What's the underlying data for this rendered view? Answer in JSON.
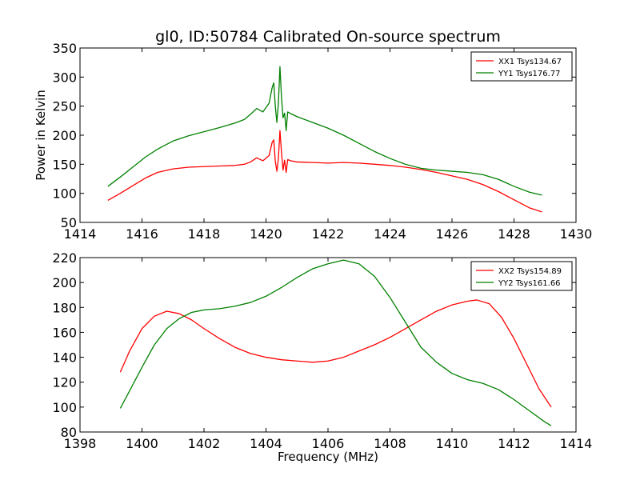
{
  "chart_data": [
    {
      "type": "line",
      "title": "gl0, ID:50784 Calibrated On-source spectrum",
      "xlabel": "",
      "ylabel": "Power in Kelvin",
      "xlim": [
        1414,
        1430
      ],
      "ylim": [
        50,
        350
      ],
      "xticks": [
        1414,
        1416,
        1418,
        1420,
        1422,
        1424,
        1426,
        1428,
        1430
      ],
      "yticks": [
        50,
        100,
        150,
        200,
        250,
        300,
        350
      ],
      "legend_position": "top-right",
      "series": [
        {
          "name": "XX1 Tsys134.67",
          "color": "#ff0000",
          "x": [
            1414.9,
            1415.3,
            1415.7,
            1416.1,
            1416.5,
            1417.0,
            1417.5,
            1418.0,
            1418.5,
            1419.0,
            1419.3,
            1419.5,
            1419.7,
            1419.9,
            1420.1,
            1420.2,
            1420.25,
            1420.3,
            1420.35,
            1420.4,
            1420.45,
            1420.5,
            1420.55,
            1420.6,
            1420.65,
            1420.7,
            1420.8,
            1421.0,
            1421.5,
            1422.0,
            1422.5,
            1423.0,
            1423.5,
            1424.0,
            1424.5,
            1425.0,
            1425.5,
            1426.0,
            1426.5,
            1427.0,
            1427.5,
            1428.0,
            1428.5,
            1428.9
          ],
          "y": [
            88,
            100,
            113,
            126,
            136,
            142,
            145,
            146,
            147,
            148,
            150,
            154,
            161,
            156,
            165,
            188,
            192,
            155,
            138,
            160,
            208,
            170,
            140,
            157,
            136,
            158,
            156,
            154,
            153,
            152,
            153,
            152,
            150,
            148,
            145,
            141,
            136,
            130,
            124,
            115,
            103,
            89,
            75,
            68
          ]
        },
        {
          "name": "YY1 Tsys176.77",
          "color": "#008000",
          "x": [
            1414.9,
            1415.3,
            1415.7,
            1416.1,
            1416.5,
            1417.0,
            1417.5,
            1418.0,
            1418.5,
            1419.0,
            1419.3,
            1419.5,
            1419.7,
            1419.9,
            1420.1,
            1420.2,
            1420.25,
            1420.3,
            1420.35,
            1420.4,
            1420.45,
            1420.5,
            1420.55,
            1420.6,
            1420.65,
            1420.7,
            1420.8,
            1421.0,
            1421.5,
            1422.0,
            1422.5,
            1423.0,
            1423.5,
            1424.0,
            1424.5,
            1425.0,
            1425.5,
            1426.0,
            1426.5,
            1427.0,
            1427.5,
            1428.0,
            1428.5,
            1428.9
          ],
          "y": [
            112,
            128,
            145,
            162,
            176,
            190,
            199,
            206,
            213,
            221,
            227,
            236,
            246,
            240,
            255,
            282,
            290,
            250,
            222,
            255,
            318,
            265,
            230,
            238,
            208,
            240,
            237,
            232,
            222,
            212,
            200,
            186,
            172,
            160,
            150,
            143,
            140,
            138,
            136,
            132,
            124,
            112,
            102,
            97
          ]
        }
      ]
    },
    {
      "type": "line",
      "title": "",
      "xlabel": "Frequency (MHz)",
      "ylabel": "",
      "xlim": [
        1398,
        1414
      ],
      "ylim": [
        80,
        220
      ],
      "xticks": [
        1398,
        1400,
        1402,
        1404,
        1406,
        1408,
        1410,
        1412,
        1414
      ],
      "yticks": [
        80,
        100,
        120,
        140,
        160,
        180,
        200,
        220
      ],
      "legend_position": "top-right",
      "series": [
        {
          "name": "XX2 Tsys154.89",
          "color": "#ff0000",
          "x": [
            1399.3,
            1399.6,
            1400.0,
            1400.4,
            1400.8,
            1401.2,
            1401.6,
            1402.0,
            1402.5,
            1403.0,
            1403.5,
            1404.0,
            1404.5,
            1405.0,
            1405.5,
            1406.0,
            1406.5,
            1407.0,
            1407.5,
            1408.0,
            1408.5,
            1409.0,
            1409.5,
            1410.0,
            1410.5,
            1410.8,
            1411.2,
            1411.6,
            1412.0,
            1412.4,
            1412.8,
            1413.2
          ],
          "y": [
            128,
            145,
            163,
            173,
            177,
            175,
            170,
            163,
            155,
            148,
            143,
            140,
            138,
            137,
            136,
            137,
            140,
            145,
            150,
            156,
            163,
            170,
            177,
            182,
            185,
            186,
            183,
            172,
            155,
            135,
            115,
            100
          ]
        },
        {
          "name": "YY2 Tsys161.66",
          "color": "#008000",
          "x": [
            1399.3,
            1399.6,
            1400.0,
            1400.4,
            1400.8,
            1401.2,
            1401.6,
            1402.0,
            1402.5,
            1403.0,
            1403.5,
            1404.0,
            1404.5,
            1405.0,
            1405.5,
            1406.0,
            1406.5,
            1407.0,
            1407.5,
            1408.0,
            1408.5,
            1409.0,
            1409.5,
            1410.0,
            1410.5,
            1411.0,
            1411.5,
            1412.0,
            1412.5,
            1413.0,
            1413.2
          ],
          "y": [
            99,
            113,
            132,
            150,
            163,
            171,
            176,
            178,
            179,
            181,
            184,
            189,
            196,
            204,
            211,
            215,
            218,
            215,
            205,
            188,
            168,
            148,
            136,
            127,
            122,
            119,
            114,
            106,
            97,
            88,
            85
          ]
        }
      ]
    }
  ]
}
